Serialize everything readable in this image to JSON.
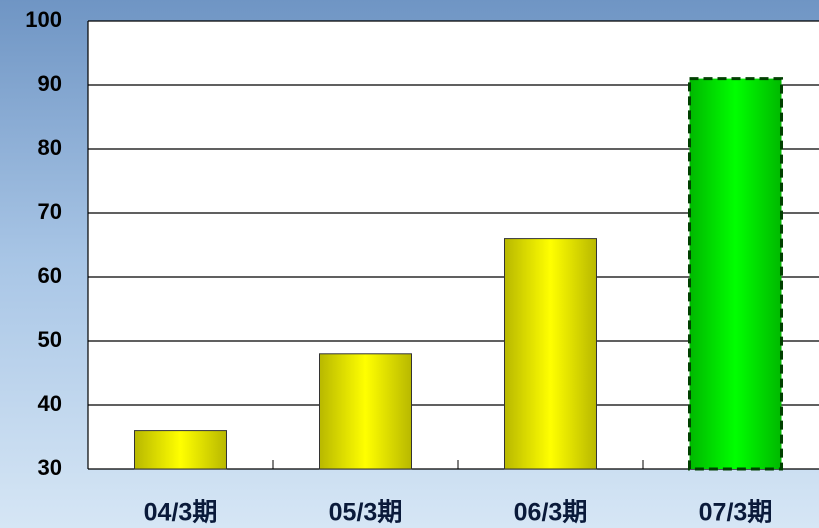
{
  "chart_data": {
    "type": "bar",
    "categories": [
      "04/3期",
      "05/3期",
      "06/3期",
      "07/3期"
    ],
    "values": [
      36,
      48,
      66,
      91
    ],
    "colors": [
      "#ffff00",
      "#ffff00",
      "#ffff00",
      "#00ff00"
    ],
    "ylim": [
      30,
      100
    ],
    "yticks": [
      30,
      40,
      50,
      60,
      70,
      80,
      90,
      100
    ],
    "grid": true
  }
}
